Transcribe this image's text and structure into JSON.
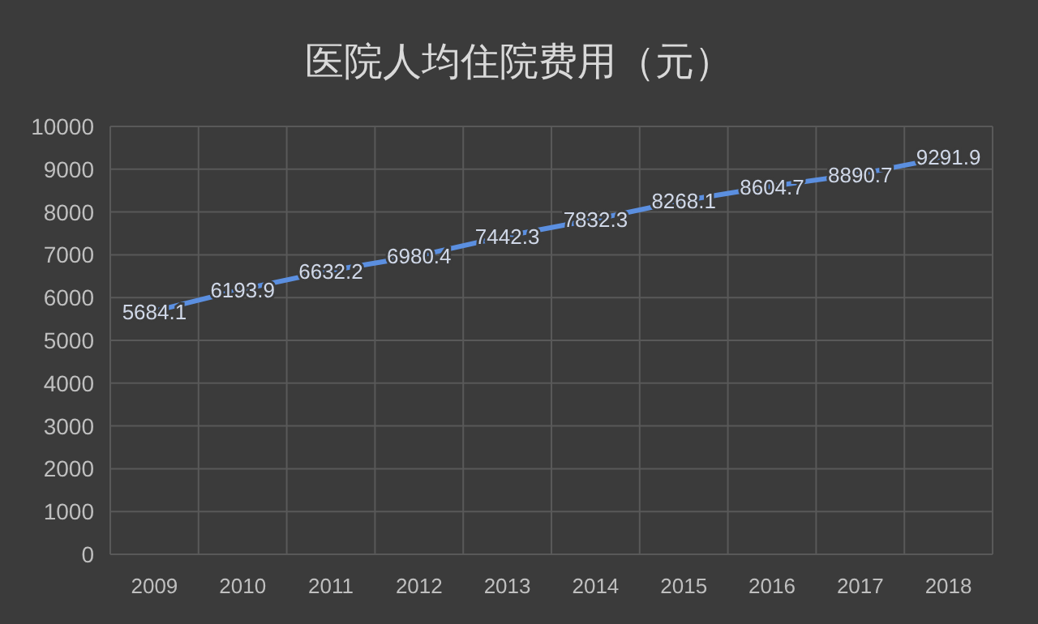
{
  "chart_data": {
    "type": "line",
    "title": "医院人均住院费用（元）",
    "categories": [
      "2009",
      "2010",
      "2011",
      "2012",
      "2013",
      "2014",
      "2015",
      "2016",
      "2017",
      "2018"
    ],
    "series": [
      {
        "color": "#5b8fe0",
        "values": [
          5684.1,
          6193.9,
          6632.2,
          6980.4,
          7442.3,
          7832.3,
          8268.1,
          8604.7,
          8890.7,
          9291.9
        ]
      }
    ],
    "ylim": [
      0,
      10000
    ],
    "yticks": [
      0,
      1000,
      2000,
      3000,
      4000,
      5000,
      6000,
      7000,
      8000,
      9000,
      10000
    ],
    "grid": true,
    "data_labels": true
  }
}
